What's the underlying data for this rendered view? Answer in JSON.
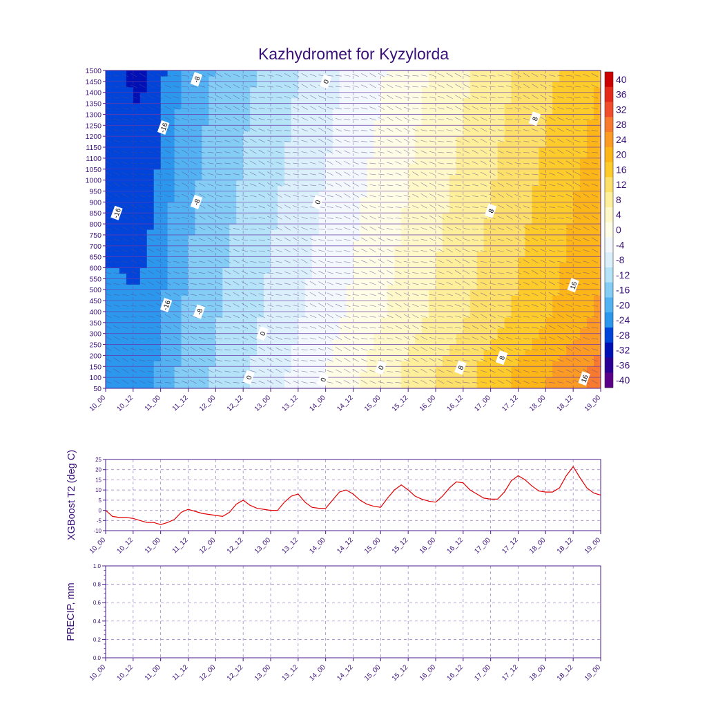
{
  "title": "Kazhydromet for Kyzylorda",
  "colors": {
    "axis": "#4a1a8a",
    "grid": "#6a3aa8",
    "line": "#e00000",
    "text": "#3a1078"
  },
  "time_ticks": [
    "10_00",
    "10_12",
    "11_00",
    "11_12",
    "12_00",
    "12_12",
    "13_00",
    "13_12",
    "14_00",
    "14_12",
    "15_00",
    "15_12",
    "16_00",
    "16_12",
    "17_00",
    "17_12",
    "18_00",
    "18_12",
    "19_00"
  ],
  "chart_data": [
    {
      "type": "heatmap",
      "title": "Kazhydromet for Kyzylorda",
      "x_ticks": [
        "10_00",
        "10_12",
        "11_00",
        "11_12",
        "12_00",
        "12_12",
        "13_00",
        "13_12",
        "14_00",
        "14_12",
        "15_00",
        "15_12",
        "16_00",
        "16_12",
        "17_00",
        "17_12",
        "18_00",
        "18_12",
        "19_00"
      ],
      "y_ticks": [
        50,
        100,
        150,
        200,
        250,
        300,
        350,
        400,
        450,
        500,
        550,
        600,
        650,
        700,
        750,
        800,
        850,
        900,
        950,
        1000,
        1050,
        1100,
        1150,
        1200,
        1250,
        1300,
        1350,
        1400,
        1450,
        1500
      ],
      "ylim": [
        50,
        1500
      ],
      "colorbar_labels": [
        40,
        36,
        32,
        28,
        24,
        20,
        16,
        12,
        8,
        4,
        0,
        -4,
        -8,
        -12,
        -16,
        -20,
        -24,
        -28,
        -32,
        -36,
        -40
      ],
      "colorbar_colors": [
        "#cc0000",
        "#e52a1a",
        "#f14c2b",
        "#f87a2e",
        "#fb9b23",
        "#fdb617",
        "#fdcb2a",
        "#fde06a",
        "#fef09a",
        "#fff8c8",
        "#fffde6",
        "#f2f8fc",
        "#dcf0fb",
        "#b5e3f8",
        "#84cdf5",
        "#53b3f2",
        "#2b98ee",
        "#0044d9",
        "#0010b5",
        "#2a0095",
        "#5b0088"
      ],
      "contour_labels": [
        {
          "text": "-8",
          "time": 11.65,
          "height": 1460
        },
        {
          "text": "0",
          "time": 14.0,
          "height": 1450
        },
        {
          "text": "-16",
          "time": 11.05,
          "height": 1240
        },
        {
          "text": "-16",
          "time": 10.2,
          "height": 850
        },
        {
          "text": "-8",
          "time": 11.65,
          "height": 900
        },
        {
          "text": "0",
          "time": 13.85,
          "height": 900
        },
        {
          "text": "8",
          "time": 17.0,
          "height": 860
        },
        {
          "text": "8",
          "time": 17.8,
          "height": 1280
        },
        {
          "text": "-16",
          "time": 11.1,
          "height": 430
        },
        {
          "text": "-8",
          "time": 11.7,
          "height": 400
        },
        {
          "text": "16",
          "time": 18.5,
          "height": 520
        },
        {
          "text": "0",
          "time": 12.85,
          "height": 300
        },
        {
          "text": "8",
          "time": 17.2,
          "height": 190
        },
        {
          "text": "0",
          "time": 15.0,
          "height": 145
        },
        {
          "text": "8",
          "time": 16.45,
          "height": 145
        },
        {
          "text": "0",
          "time": 12.6,
          "height": 100
        },
        {
          "text": "0",
          "time": 13.95,
          "height": 90
        },
        {
          "text": "16",
          "time": 18.7,
          "height": 95
        }
      ]
    },
    {
      "type": "line",
      "ylabel": "XGBoost T2 (deg C)",
      "ylim": [
        -10,
        25
      ],
      "y_ticks": [
        -10,
        -5,
        0,
        5,
        10,
        15,
        20,
        25
      ],
      "x_ticks": [
        "10_00",
        "10_12",
        "11_00",
        "11_12",
        "12_00",
        "12_12",
        "13_00",
        "13_12",
        "14_00",
        "14_12",
        "15_00",
        "15_12",
        "16_00",
        "16_12",
        "17_00",
        "17_12",
        "18_00",
        "18_12",
        "19_00"
      ],
      "series": [
        {
          "x": [
            10.0,
            10.125,
            10.25,
            10.375,
            10.5,
            10.625,
            10.75,
            10.875,
            11.0,
            11.125,
            11.25,
            11.375,
            11.5,
            11.625,
            11.75,
            11.875,
            12.0,
            12.125,
            12.25,
            12.375,
            12.5,
            12.625,
            12.75,
            12.875,
            13.0,
            13.125,
            13.25,
            13.375,
            13.5,
            13.625,
            13.75,
            13.875,
            14.0,
            14.125,
            14.25,
            14.375,
            14.5,
            14.625,
            14.75,
            14.875,
            15.0,
            15.125,
            15.25,
            15.375,
            15.5,
            15.625,
            15.75,
            15.875,
            16.0,
            16.125,
            16.25,
            16.375,
            16.5,
            16.625,
            16.75,
            16.875,
            17.0,
            17.125,
            17.25,
            17.375,
            17.5,
            17.625,
            17.75,
            17.875,
            18.0,
            18.125,
            18.25,
            18.375,
            18.5,
            18.625,
            18.75,
            18.875,
            19.0
          ],
          "values": [
            0,
            -3,
            -3.5,
            -3.5,
            -4,
            -5,
            -6,
            -6,
            -7,
            -6,
            -4.5,
            -1,
            0.5,
            -0.5,
            -1.5,
            -2,
            -2.5,
            -3,
            -1,
            3,
            5,
            2.5,
            1,
            0.5,
            0,
            0,
            4,
            7,
            8,
            4,
            1.5,
            1,
            1,
            5,
            9,
            10,
            8,
            5,
            3,
            2,
            1.5,
            6,
            10,
            12.5,
            10,
            7,
            5.5,
            4.5,
            4,
            7,
            11,
            14,
            13.5,
            10,
            8,
            6,
            5.5,
            5.5,
            9,
            14.5,
            17,
            15,
            12,
            9.5,
            9,
            9,
            11,
            17,
            21.5,
            16,
            11,
            8.5,
            7.5
          ]
        }
      ]
    },
    {
      "type": "line",
      "ylabel": "PRECIP, mm",
      "ylim": [
        0.0,
        1.0
      ],
      "y_ticks": [
        "0.0",
        "0.2",
        "0.4",
        "0.6",
        "0.8",
        "1.0"
      ],
      "x_ticks": [
        "10_00",
        "10_12",
        "11_00",
        "11_12",
        "12_00",
        "12_12",
        "13_00",
        "13_12",
        "14_00",
        "14_12",
        "15_00",
        "15_12",
        "16_00",
        "16_12",
        "17_00",
        "17_12",
        "18_00",
        "18_12",
        "19_00"
      ],
      "series": []
    }
  ]
}
